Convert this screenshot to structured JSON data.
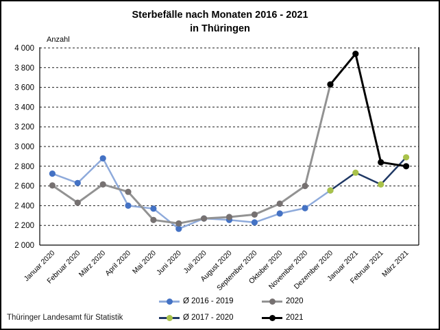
{
  "title_line1": "Sterbefälle nach Monaten 2016 - 2021",
  "title_line2": "in Thüringen",
  "source": "Thüringer Landesamt für Statistik",
  "chart_data": {
    "type": "line",
    "title": "Sterbefälle nach Monaten 2016 - 2021 in Thüringen",
    "xlabel": "",
    "ylabel": "Anzahl",
    "ylim": [
      2000,
      4000
    ],
    "ytick_step": 200,
    "ytick_labels": [
      "2 000",
      "2 200",
      "2 400",
      "2 600",
      "2 800",
      "3 000",
      "3 200",
      "3 400",
      "3 600",
      "3 800",
      "4 000"
    ],
    "grid": "horizontal-dashed",
    "legend_position": "bottom",
    "categories": [
      "Januar 2020",
      "Februar 2020",
      "März 2020",
      "April 2020",
      "Mai 2020",
      "Juni 2020",
      "Juli 2020",
      "August 2020",
      "September 2020",
      "Oktober 2020",
      "November 2020",
      "Dezember 2020",
      "Januar 2021",
      "Februar 2021",
      "März 2021"
    ],
    "series": [
      {
        "name": "Ø 2016 - 2019",
        "line_color": "#8EAADB",
        "marker_color": "#4472C4",
        "line_width": 2.5,
        "values": [
          2725,
          2630,
          2880,
          2400,
          2370,
          2165,
          2270,
          2255,
          2230,
          2320,
          2375,
          2555,
          null,
          null,
          null
        ]
      },
      {
        "name": "2020",
        "line_color": "#929292",
        "marker_color": "#767171",
        "line_width": 3,
        "values": [
          2605,
          2430,
          2615,
          2540,
          2255,
          2220,
          2270,
          2285,
          2310,
          2420,
          2600,
          3630,
          null,
          null,
          null
        ]
      },
      {
        "name": "Ø 2017 - 2020",
        "line_color": "#1F3864",
        "marker_color": "#A9C24A",
        "line_width": 2.5,
        "values": [
          null,
          null,
          null,
          null,
          null,
          null,
          null,
          null,
          null,
          null,
          null,
          2555,
          2735,
          2615,
          2890
        ]
      },
      {
        "name": "2021",
        "line_color": "#000000",
        "marker_color": "#000000",
        "line_width": 3,
        "values": [
          null,
          null,
          null,
          null,
          null,
          null,
          null,
          null,
          null,
          null,
          null,
          3630,
          3940,
          2840,
          2800
        ]
      }
    ]
  }
}
